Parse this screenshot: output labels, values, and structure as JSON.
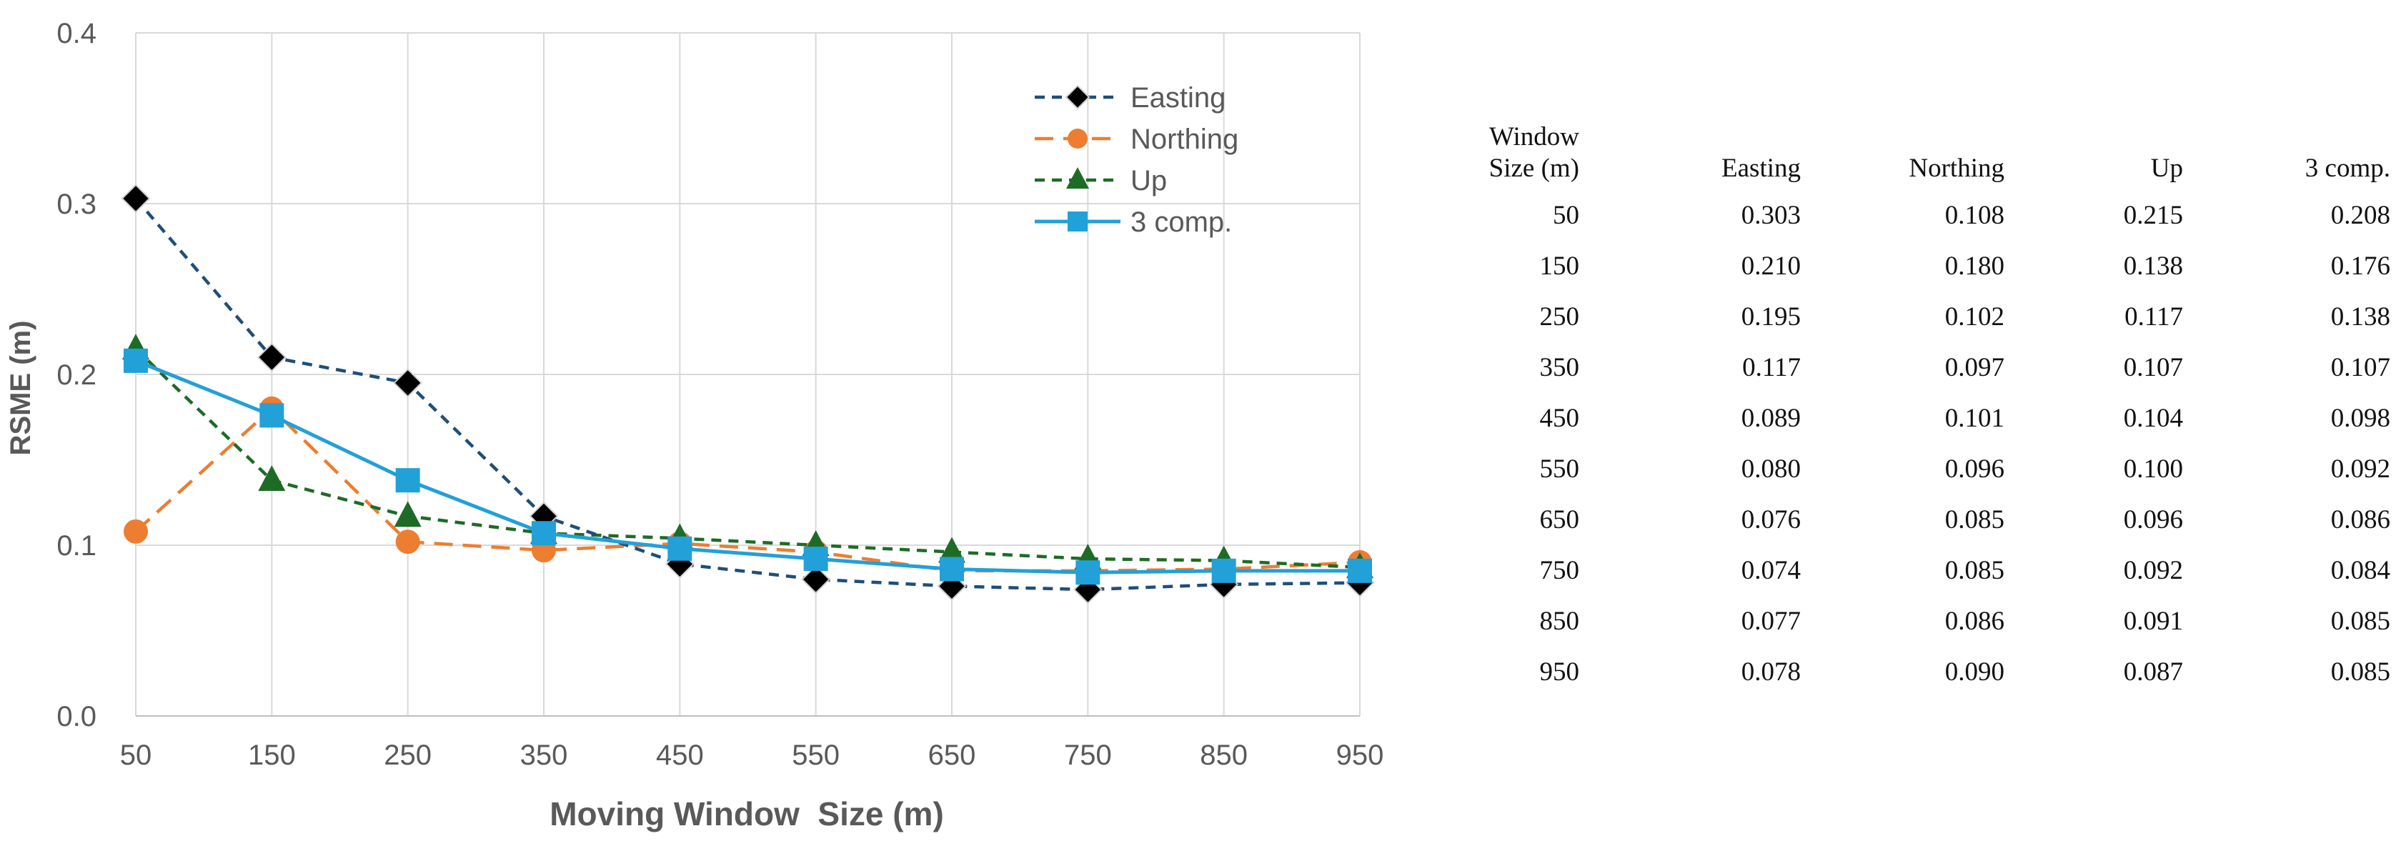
{
  "chart_data": {
    "type": "line",
    "xlabel": "Moving Window  Size (m)",
    "ylabel": "RSME (m)",
    "x": [
      50,
      150,
      250,
      350,
      450,
      550,
      650,
      750,
      850,
      950
    ],
    "xticks": [
      "50",
      "150",
      "250",
      "350",
      "450",
      "550",
      "650",
      "750",
      "850",
      "950"
    ],
    "ylim": [
      0,
      0.4
    ],
    "yticks": [
      "0.0",
      "0.1",
      "0.2",
      "0.3",
      "0.4"
    ],
    "grid": true,
    "legend_position": "top-right",
    "series": [
      {
        "name": "Easting",
        "color": "#1f4e79",
        "dash": "dashed",
        "marker": "diamond-black",
        "values": [
          0.303,
          0.21,
          0.195,
          0.117,
          0.089,
          0.08,
          0.076,
          0.074,
          0.077,
          0.078
        ]
      },
      {
        "name": "Northing",
        "color": "#ed7d31",
        "dash": "long-dashed",
        "marker": "circle",
        "values": [
          0.108,
          0.18,
          0.102,
          0.097,
          0.101,
          0.096,
          0.085,
          0.085,
          0.086,
          0.09
        ]
      },
      {
        "name": "Up",
        "color": "#1e6b26",
        "dash": "dashed",
        "marker": "triangle",
        "values": [
          0.215,
          0.138,
          0.117,
          0.107,
          0.104,
          0.1,
          0.096,
          0.092,
          0.091,
          0.087
        ]
      },
      {
        "name": "3 comp.",
        "color": "#22a0d8",
        "dash": "solid",
        "marker": "square",
        "values": [
          0.208,
          0.176,
          0.138,
          0.107,
          0.098,
          0.092,
          0.086,
          0.084,
          0.085,
          0.085
        ]
      }
    ]
  },
  "table": {
    "headers": [
      "Window\nSize (m)",
      "Easting",
      "Northing",
      "Up",
      "3 comp."
    ],
    "rows": [
      [
        "50",
        "0.303",
        "0.108",
        "0.215",
        "0.208"
      ],
      [
        "150",
        "0.210",
        "0.180",
        "0.138",
        "0.176"
      ],
      [
        "250",
        "0.195",
        "0.102",
        "0.117",
        "0.138"
      ],
      [
        "350",
        "0.117",
        "0.097",
        "0.107",
        "0.107"
      ],
      [
        "450",
        "0.089",
        "0.101",
        "0.104",
        "0.098"
      ],
      [
        "550",
        "0.080",
        "0.096",
        "0.100",
        "0.092"
      ],
      [
        "650",
        "0.076",
        "0.085",
        "0.096",
        "0.086"
      ],
      [
        "750",
        "0.074",
        "0.085",
        "0.092",
        "0.084"
      ],
      [
        "850",
        "0.077",
        "0.086",
        "0.091",
        "0.085"
      ],
      [
        "950",
        "0.078",
        "0.090",
        "0.087",
        "0.085"
      ]
    ]
  }
}
